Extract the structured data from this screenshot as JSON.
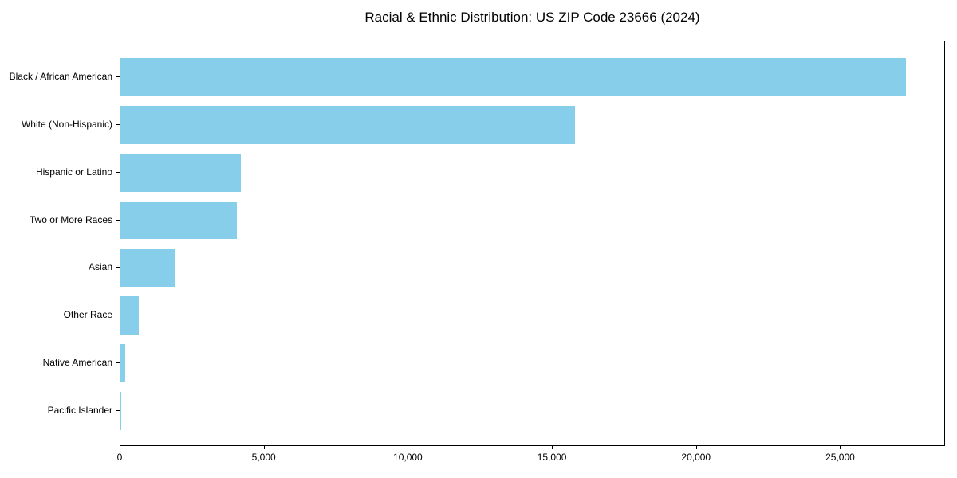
{
  "chart_data": {
    "type": "bar",
    "orientation": "horizontal",
    "title": "Racial & Ethnic Distribution: US ZIP Code 23666 (2024)",
    "categories": [
      "Black / African American",
      "White (Non-Hispanic)",
      "Hispanic or Latino",
      "Two or More Races",
      "Asian",
      "Other Race",
      "Native American",
      "Pacific Islander"
    ],
    "values": [
      27300,
      15800,
      4200,
      4050,
      1900,
      650,
      160,
      30
    ],
    "xlabel": "",
    "ylabel": "",
    "xlim": [
      0,
      28640
    ],
    "xticks": [
      0,
      5000,
      10000,
      15000,
      20000,
      25000
    ],
    "xtick_labels": [
      "0",
      "5,000",
      "10,000",
      "15,000",
      "20,000",
      "25,000"
    ],
    "bar_color": "#87CEEB",
    "axis_color": "#000000",
    "grid": false,
    "legend": "none",
    "background": "#ffffff"
  }
}
